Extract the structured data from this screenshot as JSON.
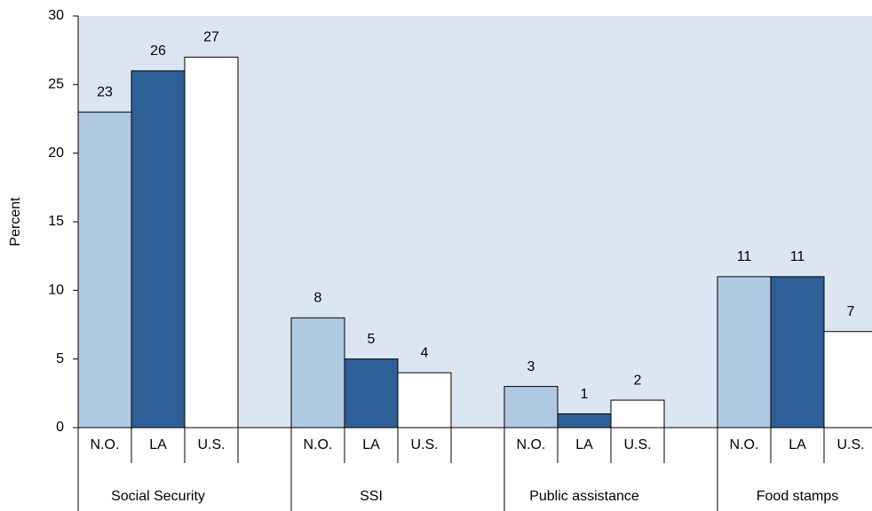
{
  "chart_data": {
    "type": "bar",
    "ylabel": "Percent",
    "categories": [
      "Social Security",
      "SSI",
      "Public assistance",
      "Food stamps"
    ],
    "series": [
      {
        "name": "N.O.",
        "color": "#afc9e3",
        "values": [
          23,
          8,
          3,
          11
        ]
      },
      {
        "name": "LA",
        "color": "#2e5f96",
        "values": [
          26,
          5,
          1,
          11
        ]
      },
      {
        "name": "U.S.",
        "color": "#ffffff",
        "values": [
          27,
          4,
          2,
          7
        ]
      }
    ],
    "ylim": [
      0,
      30
    ],
    "yticks": [
      0,
      5,
      10,
      15,
      20,
      25,
      30
    ],
    "grid": false,
    "plot_background": "#dce6f2"
  }
}
